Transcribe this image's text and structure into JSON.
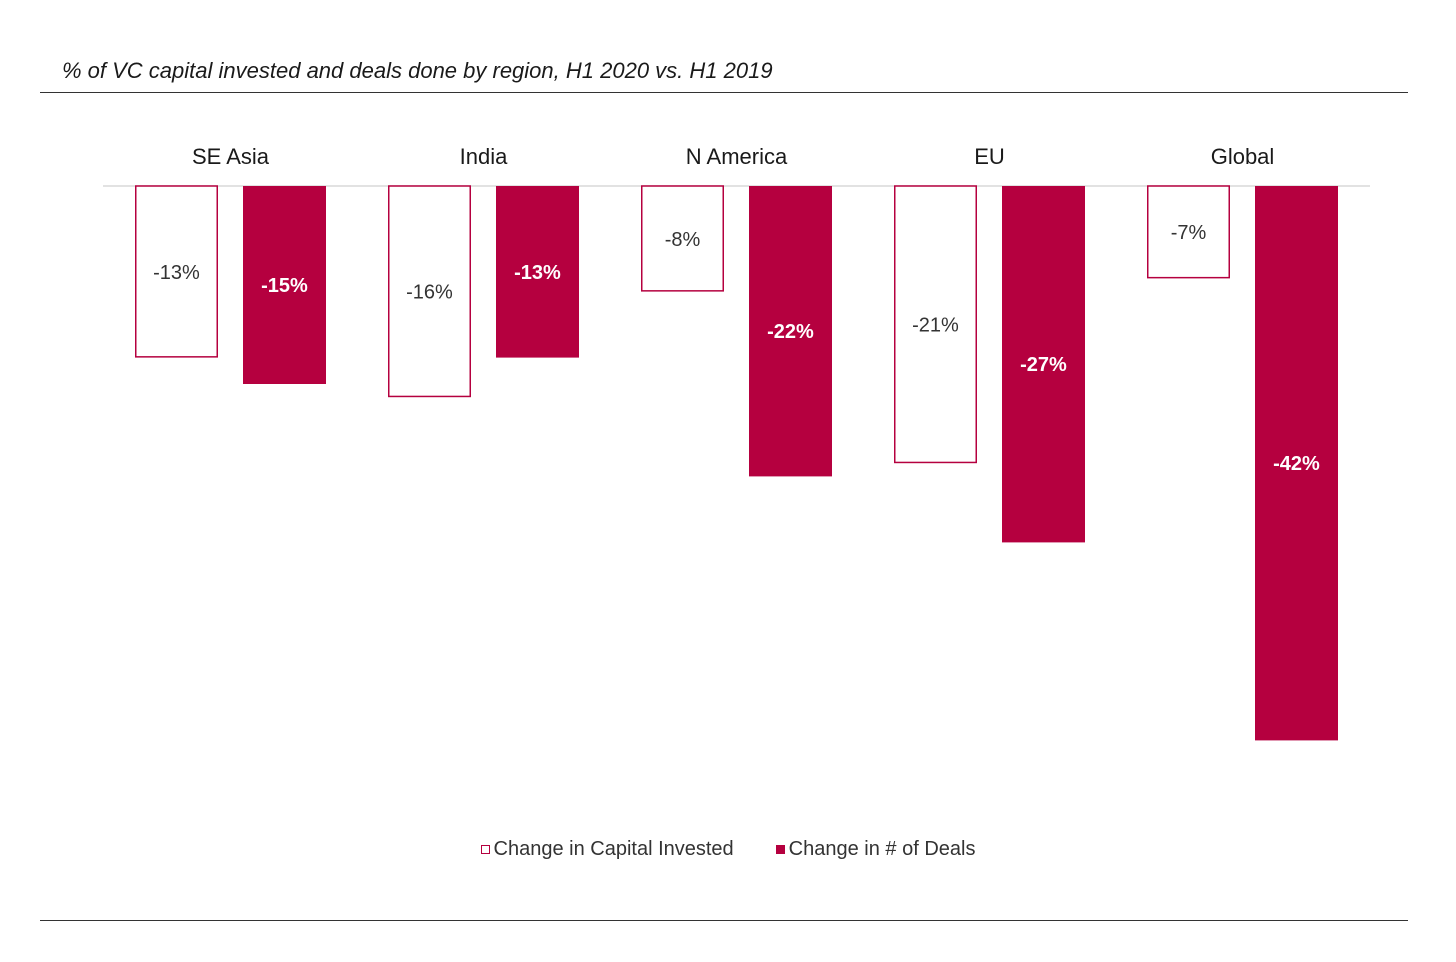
{
  "chart_data": {
    "type": "bar",
    "title": "% of VC capital invested and deals done by region, H1 2020 vs. H1 2019",
    "categories": [
      "SE Asia",
      "India",
      "N America",
      "EU",
      "Global"
    ],
    "series": [
      {
        "name": "Change in Capital Invested",
        "values": [
          -13,
          -16,
          -8,
          -21,
          -7
        ],
        "labels": [
          "-13%",
          "-16%",
          "-8%",
          "-21%",
          "-7%"
        ],
        "style": "outline",
        "color": "#b5003f"
      },
      {
        "name": "Change in # of Deals",
        "values": [
          -15,
          -13,
          -22,
          -27,
          -42
        ],
        "labels": [
          "-15%",
          "-13%",
          "-22%",
          "-27%",
          "-42%"
        ],
        "style": "filled",
        "color": "#b5003f"
      }
    ],
    "ylim": [
      -42,
      0
    ],
    "xlabel": "",
    "ylabel": "",
    "category_labels_position": "top",
    "legend": "bottom-center",
    "grid": false
  }
}
